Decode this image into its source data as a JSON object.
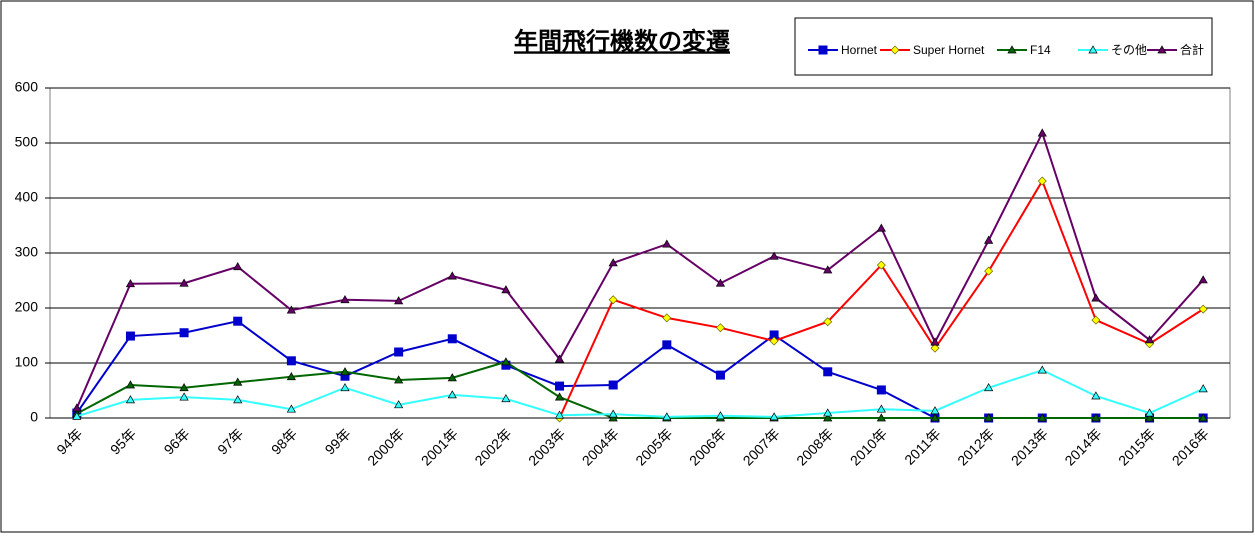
{
  "chart_data": {
    "type": "line",
    "title": "年間飛行機数の変遷",
    "categories": [
      "94年",
      "95年",
      "96年",
      "97年",
      "98年",
      "99年",
      "2000年",
      "2001年",
      "2002年",
      "2003年",
      "2004年",
      "2005年",
      "2006年",
      "2007年",
      "2008年",
      "2010年",
      "2011年",
      "2012年",
      "2013年",
      "2014年",
      "2015年",
      "2016年"
    ],
    "series": [
      {
        "name": "Hornet",
        "color": "#0000cc",
        "marker": "square",
        "marker_fill": "#0000cc",
        "values": [
          9,
          149,
          155,
          176,
          104,
          76,
          120,
          144,
          96,
          58,
          60,
          133,
          78,
          151,
          84,
          51,
          0,
          0,
          0,
          0,
          0,
          0
        ]
      },
      {
        "name": "Super Hornet",
        "color": "#ff0000",
        "marker": "diamond",
        "marker_fill": "#ffff00",
        "values": [
          null,
          null,
          null,
          null,
          null,
          null,
          null,
          null,
          null,
          0,
          215,
          182,
          164,
          140,
          175,
          278,
          127,
          267,
          431,
          178,
          135,
          198
        ]
      },
      {
        "name": "F14",
        "color": "#006600",
        "marker": "triangle",
        "marker_fill": "#006600",
        "values": [
          8,
          60,
          55,
          65,
          75,
          84,
          69,
          73,
          102,
          38,
          0,
          0,
          0,
          0,
          0,
          0,
          0,
          0,
          0,
          0,
          0,
          0
        ]
      },
      {
        "name": "その他",
        "color": "#33ffff",
        "marker": "triangle",
        "marker_fill": "#33ffff",
        "values": [
          3,
          33,
          38,
          33,
          16,
          55,
          24,
          42,
          35,
          5,
          7,
          2,
          4,
          2,
          9,
          16,
          13,
          55,
          87,
          40,
          9,
          53
        ]
      },
      {
        "name": "合計",
        "color": "#660066",
        "marker": "triangle",
        "marker_fill": "#660066",
        "values": [
          18,
          244,
          245,
          275,
          196,
          215,
          213,
          258,
          233,
          107,
          282,
          316,
          245,
          294,
          269,
          345,
          138,
          323,
          518,
          218,
          142,
          251
        ]
      }
    ],
    "ylim": [
      0,
      600
    ],
    "yticks": [
      0,
      100,
      200,
      300,
      400,
      500,
      600
    ],
    "grid": true,
    "legend": "top-right"
  }
}
